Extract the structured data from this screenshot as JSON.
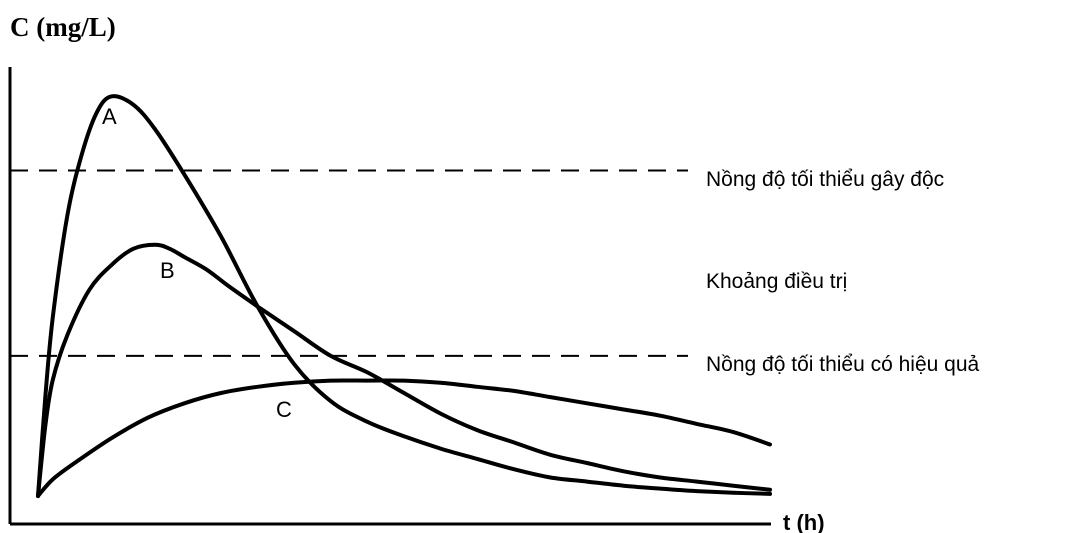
{
  "chart_data": {
    "type": "line",
    "ylabel": "C (mg/L)",
    "xlabel": "t (h)",
    "xlim": [
      0,
      100
    ],
    "ylim": [
      0,
      100
    ],
    "grid": false,
    "legend": "none",
    "series": [
      {
        "name": "A",
        "color": "#000000",
        "x": [
          0,
          1,
          2,
          4,
          6,
          8,
          10,
          13,
          16,
          20,
          25,
          30,
          35,
          40,
          45,
          50,
          55,
          60,
          65,
          70,
          75,
          80,
          85,
          90,
          95,
          100
        ],
        "y": [
          0,
          24,
          43,
          68,
          83,
          93,
          97,
          95,
          89,
          78,
          63,
          46,
          32,
          23,
          18,
          14.5,
          11.5,
          9,
          6.5,
          4.5,
          3.5,
          2.5,
          1.8,
          1.2,
          0.8,
          0.5
        ]
      },
      {
        "name": "B",
        "color": "#000000",
        "x": [
          0,
          1,
          2,
          4,
          7,
          10,
          13,
          16,
          18,
          20,
          23,
          26,
          30,
          35,
          40,
          45,
          50,
          55,
          60,
          65,
          70,
          75,
          80,
          85,
          90,
          95,
          100
        ],
        "y": [
          0,
          17,
          28,
          39,
          50,
          56,
          60,
          61,
          60,
          58,
          55,
          51,
          46,
          40,
          34,
          30,
          25,
          20,
          16,
          13,
          10,
          8,
          6,
          4.5,
          3.5,
          2.5,
          1.5
        ]
      },
      {
        "name": "C",
        "color": "#000000",
        "x": [
          0,
          2,
          5,
          10,
          15,
          20,
          25,
          30,
          35,
          40,
          45,
          50,
          55,
          60,
          65,
          70,
          75,
          80,
          85,
          90,
          95,
          100
        ],
        "y": [
          0,
          4,
          8,
          14,
          19,
          22.5,
          25,
          26.5,
          27.5,
          28,
          28,
          28,
          27.5,
          26.5,
          25.5,
          24,
          22.5,
          21,
          19.5,
          17.5,
          15.5,
          12.5
        ]
      }
    ],
    "annotations": [
      {
        "text": "A",
        "series": "A"
      },
      {
        "text": "B",
        "series": "B"
      },
      {
        "text": "C",
        "series": "C"
      }
    ],
    "reference_lines": [
      {
        "label": "Nồng độ tối thiểu gây độc",
        "y": 79,
        "style": "dashed"
      },
      {
        "label": "Khoảng điều trị",
        "y": 56.5,
        "style": "none"
      },
      {
        "label": "Nồng độ tối thiểu có hiệu quả",
        "y": 34,
        "style": "dashed"
      }
    ]
  }
}
